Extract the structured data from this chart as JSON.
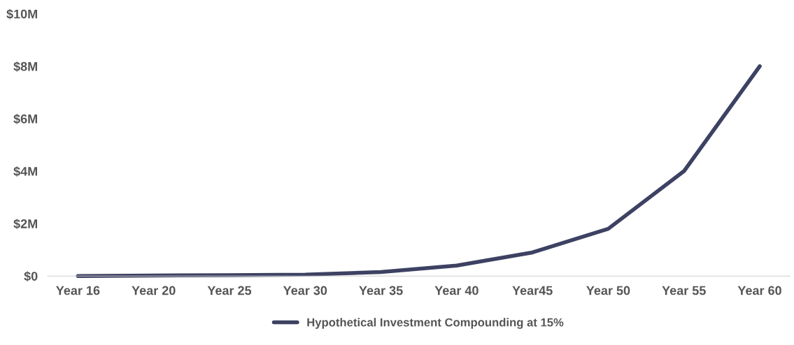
{
  "chart_data": {
    "type": "line",
    "categories": [
      "Year 16",
      "Year 20",
      "Year 25",
      "Year 30",
      "Year 35",
      "Year 40",
      "Year45",
      "Year 50",
      "Year 55",
      "Year 60"
    ],
    "series": [
      {
        "name": "Hypothetical Investment Compounding at 15%",
        "color": "#3d4263",
        "values": [
          0,
          0.02,
          0.03,
          0.05,
          0.15,
          0.4,
          0.9,
          1.8,
          4.0,
          8.0
        ]
      }
    ],
    "ylim": [
      0,
      10
    ],
    "yticks": [
      {
        "value": 0,
        "label": "$0"
      },
      {
        "value": 2,
        "label": "$2M"
      },
      {
        "value": 4,
        "label": "$4M"
      },
      {
        "value": 6,
        "label": "$6M"
      },
      {
        "value": 8,
        "label": "$8M"
      },
      {
        "value": 10,
        "label": "$10M"
      }
    ],
    "grid": false,
    "legend": "bottom",
    "marker": "none",
    "line_style": "solid"
  }
}
